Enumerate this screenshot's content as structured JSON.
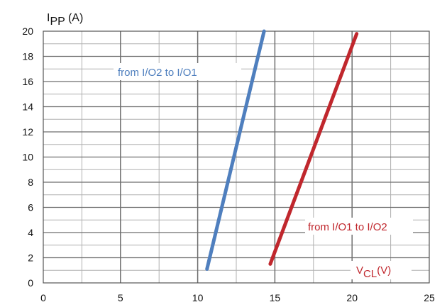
{
  "chart_data": {
    "type": "line",
    "ylabel_main": "I",
    "ylabel_sub": "PP",
    "ylabel_unit": " (A)",
    "xlabel_main": "V",
    "xlabel_sub": "CL",
    "xlabel_unit": "(V)",
    "xlim": [
      0,
      25
    ],
    "ylim": [
      0,
      20
    ],
    "xticks": [
      0,
      5,
      10,
      15,
      20,
      25
    ],
    "yticks": [
      0,
      2,
      4,
      6,
      8,
      10,
      12,
      14,
      16,
      18,
      20
    ],
    "grid": true,
    "series": [
      {
        "name": "from I/O2 to I/O1",
        "color": "#4f7fbe",
        "points": [
          [
            10.6,
            1.1
          ],
          [
            14.3,
            20.0
          ]
        ]
      },
      {
        "name": "from I/O1 to I/O2",
        "color": "#c0272d",
        "points": [
          [
            14.7,
            1.5
          ],
          [
            20.3,
            19.8
          ]
        ]
      }
    ]
  }
}
